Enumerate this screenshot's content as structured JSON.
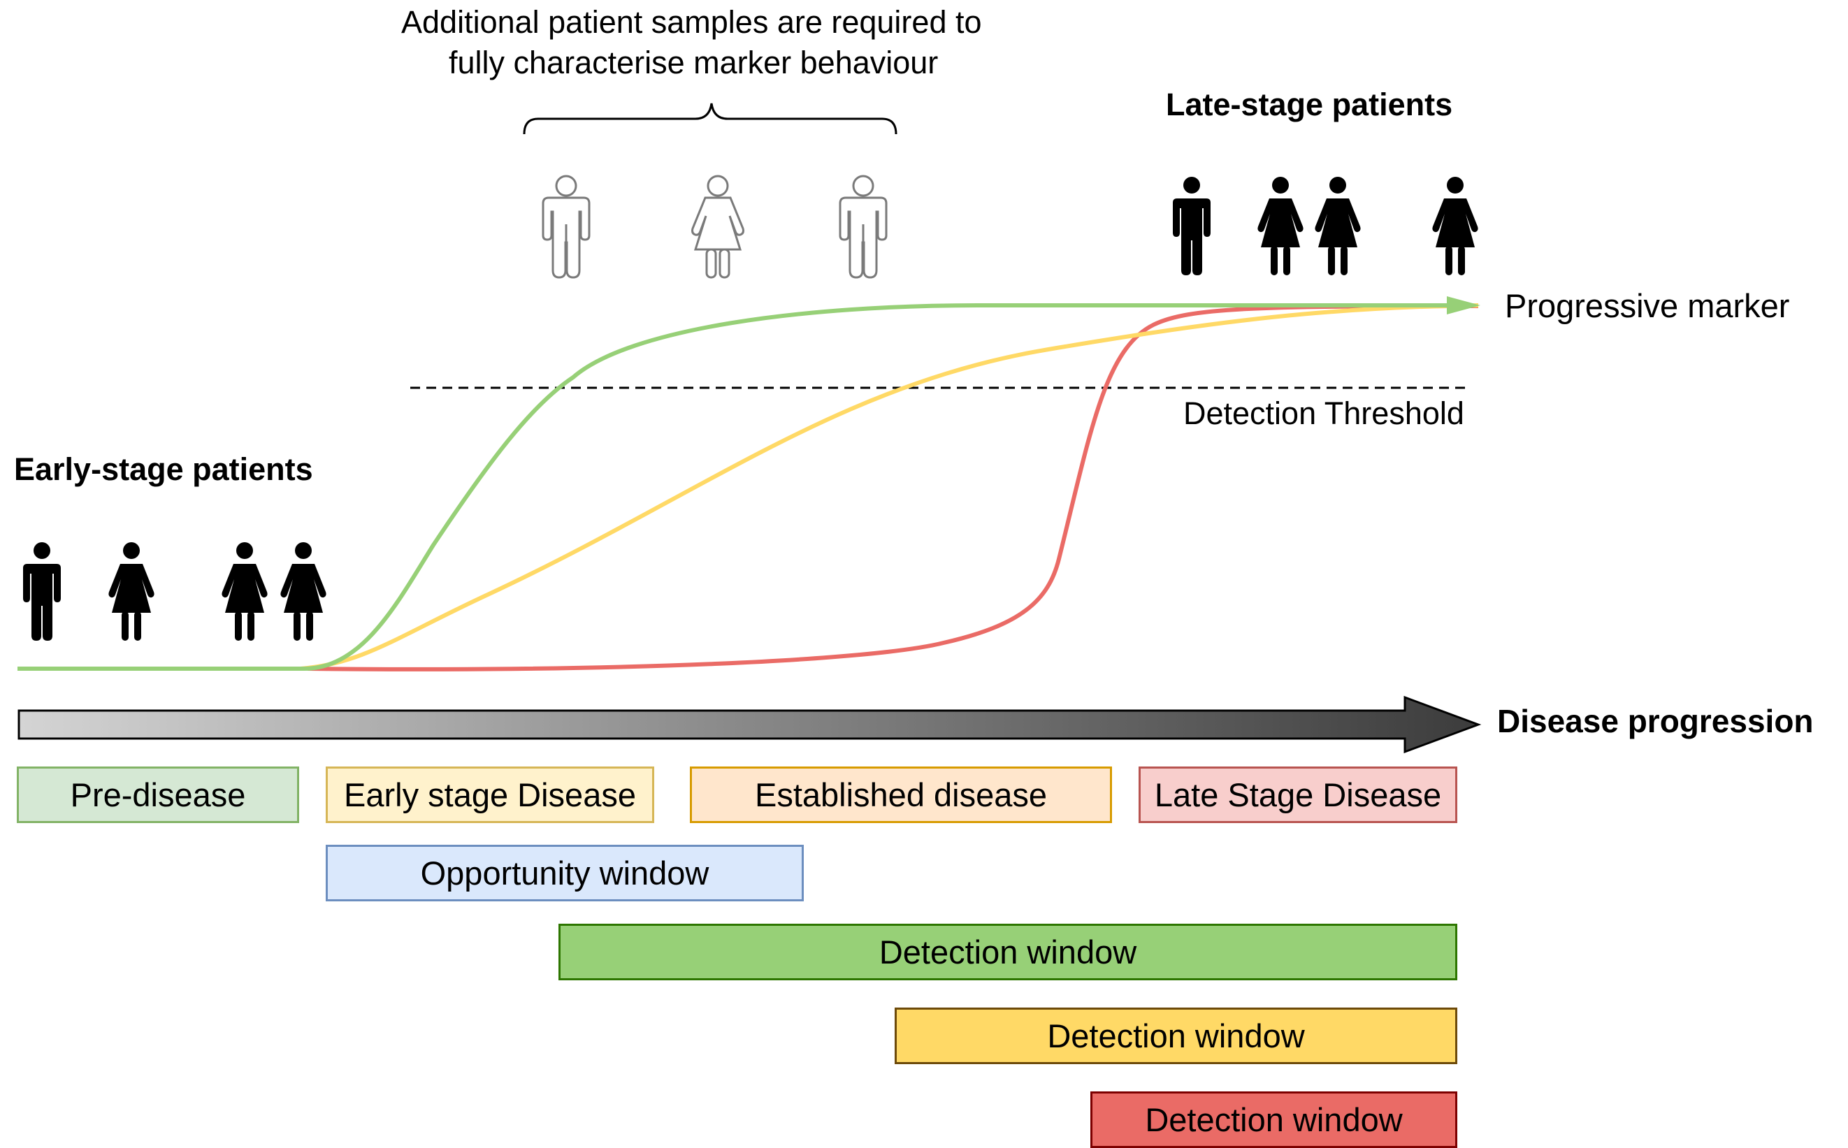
{
  "annotation": {
    "line1": "Additional patient samples are required to",
    "line2": "fully characterise marker behaviour"
  },
  "late_stage_label": "Late-stage patients",
  "early_stage_label": "Early-stage patients",
  "progressive_marker_label": "Progressive marker",
  "threshold_label": "Detection Threshold",
  "axis_label": "Disease progression",
  "stages": [
    {
      "label": "Pre-disease",
      "fill": "#d5e8d4",
      "border": "#82b366"
    },
    {
      "label": "Early stage Disease",
      "fill": "#fff2cc",
      "border": "#d6b656"
    },
    {
      "label": "Established disease",
      "fill": "#ffe6cc",
      "border": "#d79b00"
    },
    {
      "label": "Late Stage Disease",
      "fill": "#f8cecc",
      "border": "#b85450"
    }
  ],
  "opportunity_window": {
    "label": "Opportunity window",
    "fill": "#dae8fc",
    "border": "#6c8ebf"
  },
  "detection_windows": [
    {
      "label": "Detection window",
      "fill": "#97d077",
      "border": "#2d7600"
    },
    {
      "label": "Detection window",
      "fill": "#ffd966",
      "border": "#6d4a0a"
    },
    {
      "label": "Detection window",
      "fill": "#ea6b66",
      "border": "#7d0000"
    }
  ],
  "curve_colors": {
    "green": "#97d077",
    "yellow": "#ffd966",
    "red": "#ea6b66"
  },
  "icons": {
    "early_patients": [
      "person-male-icon",
      "person-female-icon",
      "person-female-icon",
      "person-female-icon"
    ],
    "late_patients": [
      "person-male-icon",
      "person-female-icon",
      "person-female-icon",
      "person-female-icon"
    ],
    "additional_patients": [
      "person-male-outline-icon",
      "person-female-outline-icon",
      "person-male-outline-icon"
    ]
  }
}
